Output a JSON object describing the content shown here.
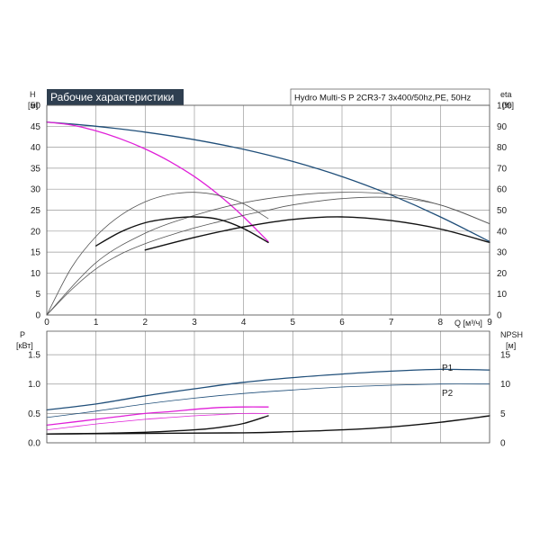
{
  "title": "Рабочие характеристики",
  "model": "Hydro Multi-S P 2CR3-7 3x400/50hz,PE, 50Hz",
  "colors": {
    "header_bg": "#2f3f50",
    "blue": "#1f4e79",
    "magenta": "#e020d8",
    "black": "#111111",
    "gray": "#555555"
  },
  "chart_data": [
    {
      "type": "line",
      "xlabel": "Q [м³/ч]",
      "ylabel": "H\n[м]",
      "y2label": "eta\n[%]",
      "xlim": [
        0,
        9
      ],
      "ylim": [
        0,
        50
      ],
      "y2lim": [
        0,
        100
      ],
      "xticks": [
        0,
        1,
        2,
        3,
        4,
        5,
        6,
        7,
        8,
        9
      ],
      "yticks": [
        0,
        5,
        10,
        15,
        20,
        25,
        30,
        35,
        40,
        45,
        50
      ],
      "y2ticks": [
        0,
        10,
        20,
        30,
        40,
        50,
        60,
        70,
        80,
        90,
        100
      ],
      "grid": true,
      "series": [
        {
          "color": "blue",
          "width": 1.3,
          "axis": "y",
          "x": [
            0,
            1,
            2,
            3,
            4,
            5,
            6,
            7,
            8,
            9
          ],
          "values": [
            46,
            45,
            43.6,
            41.8,
            39.5,
            36.6,
            33,
            28.6,
            23.4,
            17.5
          ]
        },
        {
          "color": "magenta",
          "width": 1.3,
          "axis": "y",
          "x": [
            0,
            0.5,
            1,
            1.5,
            2,
            2.5,
            3,
            3.5,
            4,
            4.5
          ],
          "values": [
            46,
            45.3,
            43.9,
            42,
            39.6,
            36.6,
            33,
            28.6,
            23.4,
            17.5
          ]
        },
        {
          "color": "gray",
          "width": 0.8,
          "axis": "y2",
          "x": [
            0,
            0.5,
            1,
            1.5,
            2,
            2.5,
            3,
            3.5,
            4,
            4.5
          ],
          "values": [
            0,
            22.5,
            37.5,
            47.5,
            54,
            57.5,
            58.5,
            57,
            53,
            46
          ]
        },
        {
          "color": "gray",
          "width": 0.8,
          "axis": "y2",
          "x": [
            0,
            1,
            2,
            3,
            4,
            5,
            6,
            7,
            8,
            9
          ],
          "values": [
            0,
            25,
            39,
            47.5,
            53.5,
            57,
            58.5,
            57.5,
            52.5,
            43.5
          ]
        },
        {
          "color": "gray",
          "width": 0.8,
          "axis": "y2",
          "x": [
            0,
            0.5,
            1,
            1.5,
            2,
            2.5,
            3,
            3.5,
            4,
            4.5,
            5,
            6,
            7,
            8,
            9
          ],
          "values": [
            0,
            12,
            22,
            29,
            34,
            38,
            41.5,
            44.5,
            47.5,
            50,
            52.5,
            55.5,
            56,
            52.5,
            43.5
          ]
        },
        {
          "color": "black",
          "width": 1.4,
          "axis": "y",
          "x": [
            1,
            1.5,
            2,
            2.5,
            3,
            3.5,
            4,
            4.5
          ],
          "values": [
            16.5,
            19.8,
            22,
            23,
            23.4,
            22.8,
            20.6,
            17.3
          ]
        },
        {
          "color": "black",
          "width": 1.4,
          "axis": "y",
          "x": [
            2,
            3,
            4,
            5,
            6,
            7,
            8,
            9
          ],
          "values": [
            15.5,
            18.5,
            21,
            22.8,
            23.4,
            22.5,
            20.5,
            17.3
          ]
        }
      ]
    },
    {
      "type": "line",
      "ylabel": "P\n[кВт]",
      "y2label": "NPSH\n[м]",
      "xlim": [
        0,
        9
      ],
      "ylim": [
        0,
        1.9
      ],
      "y2lim": [
        0,
        19
      ],
      "yticks": [
        "0.0",
        "0.5",
        "1.0",
        "1.5"
      ],
      "y2ticks": [
        0,
        5,
        10,
        15
      ],
      "grid": true,
      "series": [
        {
          "name": "P1",
          "color": "blue",
          "width": 1.3,
          "axis": "y",
          "x": [
            0,
            1,
            2,
            3,
            4,
            5,
            6,
            7,
            8,
            9
          ],
          "values": [
            0.56,
            0.66,
            0.8,
            0.92,
            1.03,
            1.11,
            1.17,
            1.22,
            1.25,
            1.24
          ]
        },
        {
          "name": "P2",
          "color": "blue",
          "width": 0.8,
          "axis": "y",
          "x": [
            0,
            1,
            2,
            3,
            4,
            5,
            6,
            7,
            8,
            9
          ],
          "values": [
            0.43,
            0.54,
            0.66,
            0.76,
            0.84,
            0.9,
            0.95,
            0.98,
            1.0,
            1.0
          ]
        },
        {
          "color": "magenta",
          "width": 1.3,
          "axis": "y",
          "x": [
            0,
            0.5,
            1,
            1.5,
            2,
            2.5,
            3,
            3.5,
            4,
            4.5
          ],
          "values": [
            0.3,
            0.35,
            0.4,
            0.45,
            0.5,
            0.53,
            0.57,
            0.6,
            0.61,
            0.61
          ]
        },
        {
          "color": "magenta",
          "width": 0.8,
          "axis": "y",
          "x": [
            0,
            0.5,
            1,
            1.5,
            2,
            2.5,
            3,
            3.5,
            4,
            4.5
          ],
          "values": [
            0.22,
            0.27,
            0.32,
            0.36,
            0.4,
            0.43,
            0.46,
            0.48,
            0.5,
            0.5
          ]
        },
        {
          "color": "black",
          "width": 1.4,
          "axis": "y2",
          "x": [
            0,
            1,
            2,
            3,
            3.5,
            4,
            4.5
          ],
          "values": [
            1.5,
            1.6,
            1.8,
            2.2,
            2.6,
            3.3,
            4.6
          ]
        },
        {
          "color": "black",
          "width": 1.4,
          "axis": "y2",
          "x": [
            0,
            2,
            4,
            5,
            6,
            7,
            8,
            9
          ],
          "values": [
            1.5,
            1.6,
            1.7,
            1.9,
            2.2,
            2.7,
            3.5,
            4.6
          ]
        }
      ]
    }
  ]
}
